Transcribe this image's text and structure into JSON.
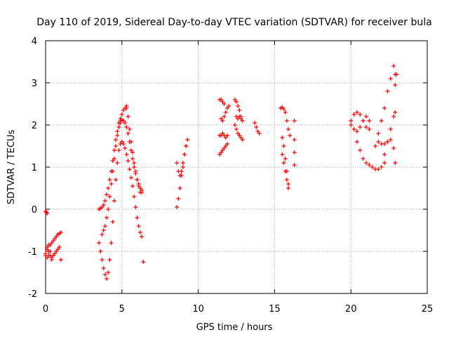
{
  "chart_data": {
    "type": "scatter",
    "title": "Day 110 of 2019, Sidereal Day-to-day VTEC variation (SDTVAR) for receiver bula",
    "xlabel": "GPS time / hours",
    "ylabel": "SDTVAR / TECUs",
    "xlim": [
      0,
      25
    ],
    "ylim": [
      -2,
      4
    ],
    "x_ticks": [
      0,
      5,
      10,
      15,
      20,
      25
    ],
    "y_ticks": [
      -2,
      -1,
      0,
      1,
      2,
      3,
      4
    ],
    "x_tick_labels": [
      "0",
      "5",
      "10",
      "15",
      "20",
      "25"
    ],
    "y_tick_labels": [
      "-2",
      "-1",
      "0",
      "1",
      "2",
      "3",
      "4"
    ],
    "grid": true,
    "legend": "none",
    "marker": "+",
    "color": "#ff0000",
    "series": [
      {
        "name": "t0-1",
        "x": [
          0.0,
          0.05,
          0.1
        ],
        "y": [
          -0.05,
          -0.07,
          -0.1
        ]
      },
      {
        "name": "t0-2",
        "x": [
          0.0,
          0.1,
          0.2,
          0.3,
          0.4,
          0.5,
          0.6,
          0.7,
          0.8,
          0.9,
          1.0
        ],
        "y": [
          -1.05,
          -0.95,
          -1.1,
          -0.85,
          -0.8,
          -0.75,
          -0.7,
          -0.65,
          -0.6,
          -0.58,
          -0.55
        ]
      },
      {
        "name": "t0-3",
        "x": [
          0.0,
          0.1,
          0.2,
          0.3,
          0.4,
          0.5,
          0.6,
          0.7,
          0.8,
          0.9,
          1.0
        ],
        "y": [
          -1.1,
          -1.15,
          -1.0,
          -1.1,
          -1.15,
          -1.1,
          -1.05,
          -1.0,
          -0.95,
          -0.9,
          -1.2
        ]
      },
      {
        "name": "t0-4",
        "x": [
          0.1,
          0.2,
          0.3,
          0.4,
          0.5
        ],
        "y": [
          -0.9,
          -0.85,
          -1.0,
          -1.2,
          -1.1
        ]
      },
      {
        "name": "t1-rise",
        "x": [
          3.5,
          3.6,
          3.7,
          3.8,
          3.9,
          4.0,
          4.1,
          4.2,
          4.3,
          4.4,
          4.5,
          4.6,
          4.7,
          4.8,
          4.9,
          5.0,
          5.1,
          5.2,
          5.3
        ],
        "y": [
          0.0,
          0.02,
          0.05,
          0.1,
          0.2,
          0.35,
          0.5,
          0.7,
          0.9,
          1.15,
          1.4,
          1.65,
          1.85,
          2.05,
          2.15,
          2.25,
          2.35,
          2.4,
          2.45
        ]
      },
      {
        "name": "t1-fall",
        "x": [
          5.3,
          5.4,
          5.5,
          5.6,
          5.7,
          5.8,
          5.9,
          6.0,
          6.1,
          6.2,
          6.3,
          6.4
        ],
        "y": [
          2.4,
          2.2,
          1.9,
          1.6,
          1.35,
          1.1,
          0.9,
          0.7,
          0.55,
          0.4,
          0.4,
          -1.25
        ]
      },
      {
        "name": "t2-dip",
        "x": [
          3.5,
          3.6,
          3.7,
          3.8,
          3.9,
          4.0,
          4.1,
          4.2,
          4.3,
          4.4,
          4.5,
          4.6,
          4.7,
          4.8,
          4.9,
          5.0
        ],
        "y": [
          -0.8,
          -1.0,
          -1.2,
          -1.4,
          -1.55,
          -1.65,
          -1.5,
          -1.2,
          -0.8,
          -0.3,
          0.2,
          0.7,
          1.1,
          1.4,
          1.55,
          1.6
        ]
      },
      {
        "name": "t2-desc",
        "x": [
          5.0,
          5.1,
          5.2,
          5.3,
          5.4,
          5.5,
          5.6,
          5.7,
          5.8,
          5.9,
          6.0,
          6.1,
          6.2,
          6.3
        ],
        "y": [
          1.6,
          1.55,
          1.45,
          1.3,
          1.15,
          0.95,
          0.75,
          0.55,
          0.3,
          0.05,
          -0.2,
          -0.4,
          -0.55,
          -0.65
        ]
      },
      {
        "name": "t3-rise",
        "x": [
          3.7,
          3.8,
          3.9,
          4.0,
          4.1,
          4.2,
          4.3,
          4.4,
          4.5,
          4.6,
          4.7,
          4.8,
          4.9
        ],
        "y": [
          -0.6,
          -0.5,
          -0.4,
          -0.2,
          0.0,
          0.3,
          0.6,
          0.9,
          1.2,
          1.5,
          1.75,
          1.95,
          2.05
        ]
      },
      {
        "name": "t3-top",
        "x": [
          4.9,
          5.0,
          5.1,
          5.2,
          5.3,
          5.4,
          5.5,
          5.6,
          5.7,
          5.8,
          5.9,
          6.0,
          6.1,
          6.2,
          6.3
        ],
        "y": [
          2.1,
          2.12,
          2.1,
          2.05,
          1.95,
          1.8,
          1.6,
          1.4,
          1.2,
          1.0,
          0.85,
          0.7,
          0.6,
          0.5,
          0.45
        ]
      },
      {
        "name": "t4",
        "x": [
          8.6,
          8.7,
          8.8,
          8.9,
          9.0,
          9.1,
          9.2,
          9.3
        ],
        "y": [
          0.05,
          0.25,
          0.5,
          0.8,
          1.0,
          1.3,
          1.5,
          1.65
        ]
      },
      {
        "name": "t5",
        "x": [
          8.6,
          8.7,
          8.8,
          8.9,
          9.0,
          9.1,
          9.2
        ],
        "y": [
          1.1,
          0.9,
          0.8,
          0.9,
          1.1,
          1.3,
          1.5
        ]
      },
      {
        "name": "t6",
        "x": [
          11.4,
          11.5,
          11.6,
          11.7
        ],
        "y": [
          2.6,
          2.6,
          2.55,
          2.5
        ]
      },
      {
        "name": "t7",
        "x": [
          11.4,
          11.5,
          11.6,
          11.7,
          11.8,
          11.9
        ],
        "y": [
          1.3,
          1.35,
          1.4,
          1.45,
          1.5,
          1.55
        ]
      },
      {
        "name": "t8",
        "x": [
          11.4,
          11.5,
          11.6,
          11.7,
          11.8,
          11.9
        ],
        "y": [
          1.75,
          1.75,
          1.8,
          1.75,
          1.7,
          1.75
        ]
      },
      {
        "name": "t9",
        "x": [
          11.5,
          11.6,
          11.7,
          11.8,
          11.9,
          12.0
        ],
        "y": [
          2.15,
          2.1,
          2.2,
          2.3,
          2.4,
          2.45
        ]
      },
      {
        "name": "t10",
        "x": [
          12.4,
          12.5,
          12.6,
          12.7,
          12.8,
          12.9
        ],
        "y": [
          2.6,
          2.55,
          2.45,
          2.35,
          2.2,
          2.1
        ]
      },
      {
        "name": "t11",
        "x": [
          12.4,
          12.5,
          12.6,
          12.7,
          12.8,
          12.9
        ],
        "y": [
          2.0,
          1.9,
          1.8,
          1.75,
          1.7,
          1.65
        ]
      },
      {
        "name": "t12",
        "x": [
          12.5,
          12.6,
          12.7,
          12.8
        ],
        "y": [
          2.2,
          2.15,
          2.2,
          2.15
        ]
      },
      {
        "name": "t13",
        "x": [
          13.7,
          13.8,
          13.9,
          14.0
        ],
        "y": [
          2.05,
          1.95,
          1.85,
          1.8
        ]
      },
      {
        "name": "t14",
        "x": [
          15.4,
          15.5,
          15.6,
          15.7
        ],
        "y": [
          2.4,
          2.42,
          2.38,
          2.3
        ]
      },
      {
        "name": "t15",
        "x": [
          15.5,
          15.6,
          15.7,
          15.8,
          15.9
        ],
        "y": [
          1.7,
          1.5,
          1.2,
          0.9,
          0.6
        ]
      },
      {
        "name": "t16",
        "x": [
          15.5,
          15.6,
          15.7,
          15.8,
          15.9
        ],
        "y": [
          1.3,
          1.1,
          0.9,
          0.7,
          0.5
        ]
      },
      {
        "name": "t17",
        "x": [
          15.8,
          15.9,
          16.0
        ],
        "y": [
          2.1,
          1.9,
          1.75
        ]
      },
      {
        "name": "t18",
        "x": [
          16.3,
          16.3,
          16.3,
          16.3
        ],
        "y": [
          2.1,
          1.65,
          1.35,
          1.05
        ]
      },
      {
        "name": "t19",
        "x": [
          20.0,
          20.2,
          20.4,
          20.6,
          20.8,
          21.0,
          21.2
        ],
        "y": [
          2.1,
          2.25,
          2.3,
          2.25,
          2.1,
          1.95,
          1.9
        ]
      },
      {
        "name": "t20",
        "x": [
          20.0,
          20.2,
          20.4,
          20.6,
          20.8,
          21.0,
          21.2
        ],
        "y": [
          2.0,
          1.9,
          1.85,
          1.95,
          2.1,
          2.2,
          2.1
        ]
      },
      {
        "name": "t21",
        "x": [
          20.4,
          20.6,
          20.8,
          21.0,
          21.2,
          21.4,
          21.6,
          21.8,
          22.0,
          22.2
        ],
        "y": [
          1.6,
          1.4,
          1.2,
          1.1,
          1.05,
          1.0,
          0.95,
          0.95,
          1.0,
          1.1
        ]
      },
      {
        "name": "t22",
        "x": [
          21.6,
          21.8,
          22.0,
          22.2,
          22.4,
          22.6,
          22.8,
          23.0
        ],
        "y": [
          1.5,
          1.8,
          2.1,
          2.4,
          2.8,
          3.1,
          3.4,
          3.2
        ]
      },
      {
        "name": "t23",
        "x": [
          21.8,
          22.0,
          22.2,
          22.4,
          22.6,
          22.8
        ],
        "y": [
          1.6,
          1.55,
          1.55,
          1.6,
          1.65,
          1.45
        ]
      },
      {
        "name": "t24",
        "x": [
          22.2,
          22.4,
          22.6,
          22.8
        ],
        "y": [
          1.3,
          1.6,
          1.9,
          2.2
        ]
      },
      {
        "name": "t25",
        "x": [
          22.9,
          22.9,
          22.9,
          22.9
        ],
        "y": [
          3.2,
          2.95,
          2.3,
          1.1
        ]
      }
    ]
  }
}
